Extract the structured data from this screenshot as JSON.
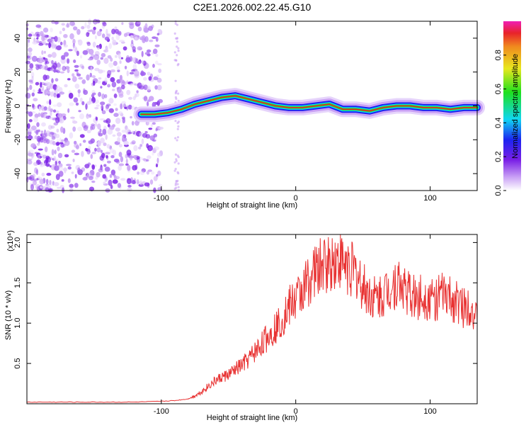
{
  "title": "C2E1.2026.002.22.45.G10",
  "colors": {
    "snr_line": "#e83232",
    "noise_dot": "#7a1fe6",
    "signal_peak": "#e8232a",
    "background": "#ffffff"
  },
  "chart_data": [
    {
      "type": "heatmap",
      "name": "spectrogram",
      "xlabel": "Height of straight line (km)",
      "ylabel": "Frequency (Hz)",
      "xlim": [
        -200,
        135
      ],
      "ylim": [
        -50,
        50
      ],
      "xticks": [
        "-100",
        "0",
        "100"
      ],
      "xtick_values": [
        -100,
        0,
        100
      ],
      "yticks": [
        "40",
        "20",
        "0",
        "-20",
        "-40"
      ],
      "ytick_values": [
        40,
        20,
        0,
        -20,
        -40
      ],
      "noise_region_km": [
        -200,
        -100
      ],
      "signal_track": {
        "x": [
          -115,
          -105,
          -95,
          -85,
          -75,
          -65,
          -55,
          -45,
          -35,
          -25,
          -15,
          -5,
          5,
          15,
          25,
          35,
          45,
          55,
          65,
          75,
          85,
          95,
          105,
          115,
          125,
          135
        ],
        "y": [
          -5,
          -5,
          -4,
          -2,
          1,
          3,
          5,
          6,
          4,
          2,
          0,
          -1,
          -1,
          0,
          1,
          -2,
          -2,
          -3,
          -1,
          0,
          0,
          -1,
          -1,
          -2,
          -1,
          -1
        ]
      },
      "colorbar": {
        "label": "Normalized spectral amplitude",
        "range": [
          0,
          1
        ],
        "ticks": [
          "0.0",
          "0.2",
          "0.4",
          "0.6",
          "0.8"
        ],
        "tick_values": [
          0.0,
          0.2,
          0.4,
          0.6,
          0.8
        ]
      }
    },
    {
      "type": "line",
      "name": "snr",
      "xlabel": "Height of straight line (km)",
      "ylabel": "SNR (10 * v/v)",
      "scale_label": "(x10⁴)",
      "xlim": [
        -200,
        135
      ],
      "ylim": [
        0,
        2.1
      ],
      "xticks": [
        "-100",
        "0",
        "100"
      ],
      "xtick_values": [
        -100,
        0,
        100
      ],
      "yticks": [
        "0.5",
        "1.0",
        "1.5",
        "2.0"
      ],
      "ytick_values": [
        0.5,
        1.0,
        1.5,
        2.0
      ],
      "series": [
        {
          "name": "SNR",
          "x": [
            -200,
            -180,
            -160,
            -140,
            -120,
            -100,
            -90,
            -80,
            -75,
            -70,
            -65,
            -60,
            -55,
            -50,
            -45,
            -40,
            -35,
            -30,
            -25,
            -20,
            -15,
            -10,
            -5,
            0,
            5,
            10,
            15,
            20,
            25,
            30,
            35,
            40,
            45,
            50,
            55,
            60,
            65,
            70,
            75,
            80,
            85,
            90,
            95,
            100,
            105,
            110,
            115,
            120,
            125,
            130,
            135
          ],
          "y": [
            0.02,
            0.02,
            0.02,
            0.02,
            0.02,
            0.03,
            0.04,
            0.06,
            0.1,
            0.15,
            0.22,
            0.28,
            0.33,
            0.36,
            0.42,
            0.48,
            0.55,
            0.65,
            0.75,
            0.85,
            0.95,
            1.05,
            1.2,
            1.3,
            1.4,
            1.55,
            1.65,
            1.7,
            1.75,
            1.8,
            1.75,
            1.7,
            1.6,
            1.45,
            1.35,
            1.3,
            1.35,
            1.45,
            1.5,
            1.45,
            1.35,
            1.3,
            1.35,
            1.3,
            1.3,
            1.35,
            1.3,
            1.25,
            1.2,
            1.25,
            1.0
          ]
        }
      ]
    }
  ]
}
